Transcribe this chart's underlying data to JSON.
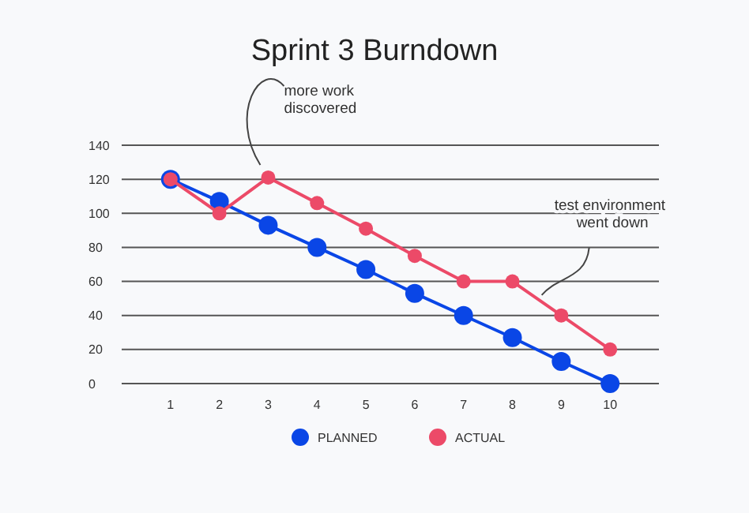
{
  "chart_data": {
    "type": "line",
    "title": "Sprint 3 Burndown",
    "x": [
      1,
      2,
      3,
      4,
      5,
      6,
      7,
      8,
      9,
      10
    ],
    "series": [
      {
        "name": "PLANNED",
        "color": "#0a46e6",
        "values": [
          120,
          107,
          93,
          80,
          67,
          53,
          40,
          27,
          13,
          0
        ]
      },
      {
        "name": "ACTUAL",
        "color": "#ec4a68",
        "values": [
          120,
          100,
          121,
          106,
          91,
          75,
          60,
          60,
          40,
          20
        ]
      }
    ],
    "xlim": [
      0,
      11
    ],
    "xticks": [
      1,
      2,
      3,
      4,
      5,
      6,
      7,
      8,
      9,
      10
    ],
    "ylim": [
      0,
      140
    ],
    "yticks": [
      0,
      20,
      40,
      60,
      80,
      100,
      120,
      140
    ],
    "grid": "y",
    "legend": "bottom",
    "marker": "circle",
    "line_style": "solid",
    "annotations": [
      "more work discovered",
      "test environment went down"
    ]
  }
}
